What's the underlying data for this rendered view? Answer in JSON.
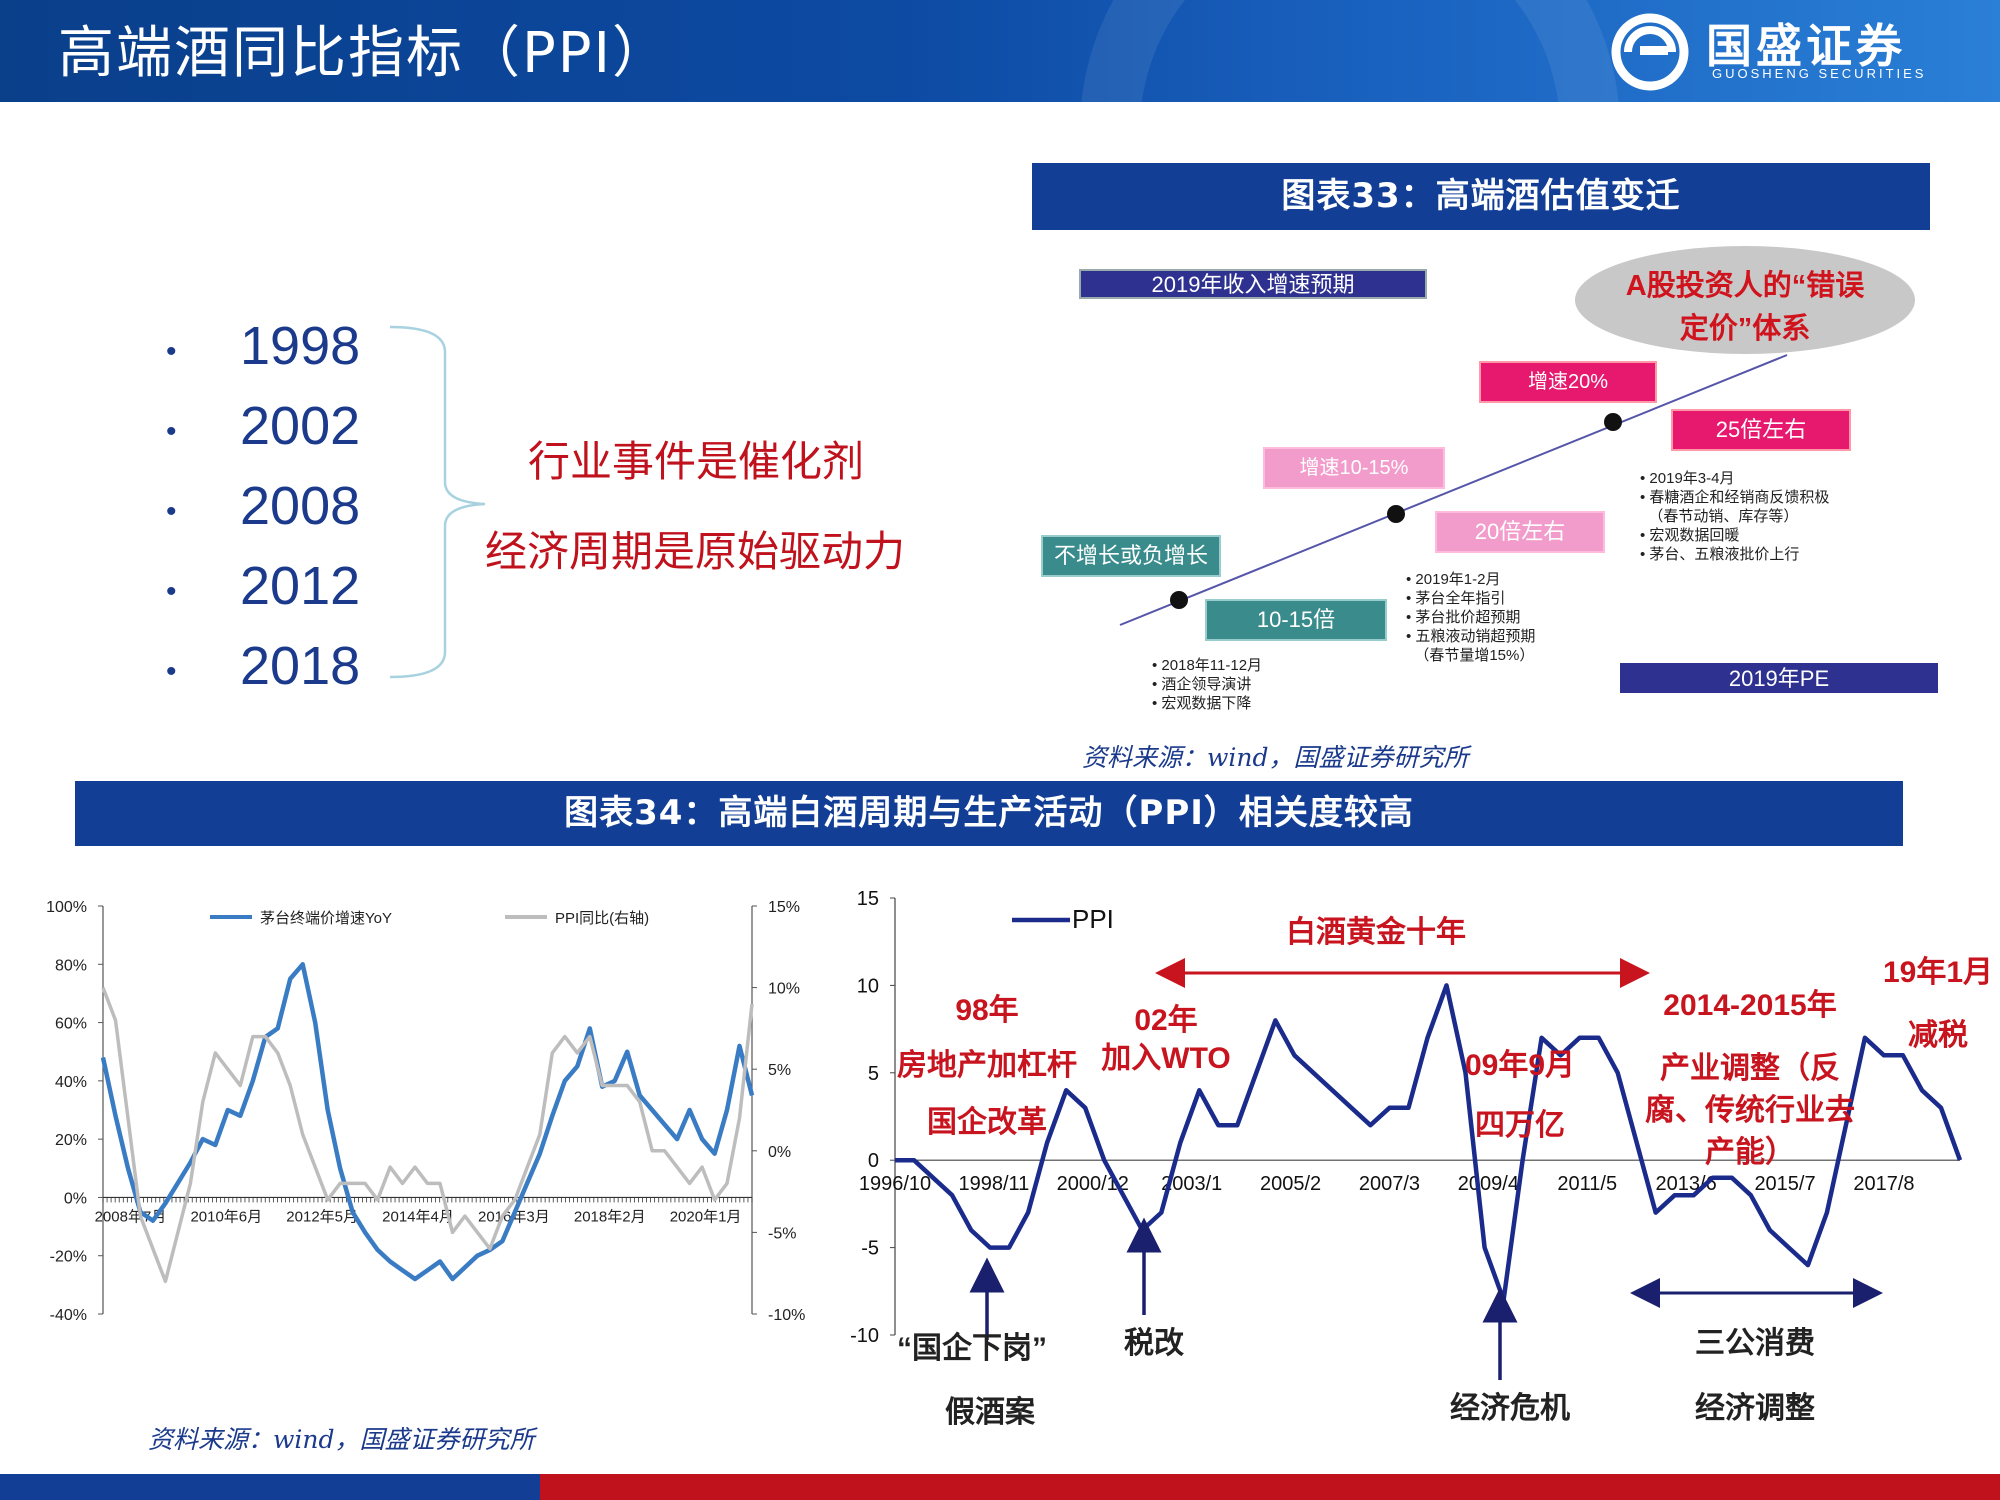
{
  "header": {
    "title": "高端酒同比指标（PPI）",
    "logo_text": "国盛证券",
    "logo_sub": "GUOSHENG SECURITIES"
  },
  "left_panel": {
    "years": [
      "1998",
      "2002",
      "2008",
      "2012",
      "2018"
    ],
    "line1": "行业事件是催化剂",
    "line2": "经济周期是原始驱动力"
  },
  "fig33": {
    "title": "图表33：高端酒估值变迁",
    "label_rev": "2019年收入增速预期",
    "label_pe": "2019年PE",
    "ellipse_text1": "A股投资人的“错误",
    "ellipse_text2": "定价”体系",
    "box_nogrowth": "不增长或负增长",
    "box_10_15x": "10-15倍",
    "box_growth_10_15": "增速10-15%",
    "box_20x": "20倍左右",
    "box_growth_20": "增速20%",
    "box_25x": "25倍左右",
    "notes_a": [
      "2018年11-12月",
      "酒企领导演讲",
      "宏观数据下降"
    ],
    "notes_b": [
      "2019年1-2月",
      "茅台全年指引",
      "茅台批价超预期",
      "五粮液动销超预期",
      "（春节量增15%）"
    ],
    "notes_c": [
      "2019年3-4月",
      "春糖酒企和经销商反馈积极",
      "（春节动销、库存等）",
      "宏观数据回暖",
      "茅台、五粮液批价上行"
    ],
    "source": "资料来源：wind，国盛证券研究所"
  },
  "fig34": {
    "title": "图表34：高端白酒周期与生产活动（PPI）相关度较高"
  },
  "source_bottom": "资料来源：wind，国盛证券研究所",
  "colors": {
    "navy": "#123e96",
    "red": "#c0121c",
    "blue_series": "#3a7cc4",
    "gray_series": "#bdbdbd",
    "ppi_series": "#1b2b8c"
  },
  "chart_data": [
    {
      "type": "line",
      "legend": [
        "茅台终端价增速YoY",
        "PPI同比(右轴)"
      ],
      "legend_position": "top",
      "x_ticks": [
        "2008年7月",
        "2010年6月",
        "2012年5月",
        "2014年4月",
        "2016年3月",
        "2018年2月",
        "2020年1月"
      ],
      "y_left_ticks": [
        "100%",
        "80%",
        "60%",
        "40%",
        "20%",
        "0%",
        "-20%",
        "-40%"
      ],
      "y_right_ticks": [
        "15%",
        "10%",
        "5%",
        "0%",
        "-5%",
        "-10%"
      ],
      "ylim_left": [
        -40,
        100
      ],
      "ylim_right": [
        -10,
        15
      ],
      "series": [
        {
          "name": "茅台终端价增速YoY",
          "axis": "left",
          "x": [
            2008.0,
            2008.25,
            2008.5,
            2008.75,
            2009.0,
            2009.25,
            2009.5,
            2009.75,
            2010.0,
            2010.25,
            2010.5,
            2010.75,
            2011.0,
            2011.25,
            2011.5,
            2011.75,
            2012.0,
            2012.25,
            2012.5,
            2012.75,
            2013.0,
            2013.25,
            2013.5,
            2013.75,
            2014.0,
            2014.25,
            2014.5,
            2014.75,
            2015.0,
            2015.25,
            2015.5,
            2015.75,
            2016.0,
            2016.25,
            2016.5,
            2016.75,
            2017.0,
            2017.25,
            2017.5,
            2017.75,
            2018.0,
            2018.25,
            2018.5,
            2018.75,
            2019.0,
            2019.25,
            2019.5,
            2019.75,
            2020.0,
            2020.25,
            2020.5,
            2020.75,
            2021.0
          ],
          "values": [
            48,
            28,
            10,
            -5,
            -8,
            -2,
            5,
            12,
            20,
            18,
            30,
            28,
            40,
            55,
            58,
            75,
            80,
            60,
            30,
            10,
            -5,
            -12,
            -18,
            -22,
            -25,
            -28,
            -25,
            -22,
            -28,
            -24,
            -20,
            -18,
            -15,
            -5,
            5,
            15,
            28,
            40,
            45,
            58,
            38,
            40,
            50,
            35,
            30,
            25,
            20,
            30,
            20,
            15,
            30,
            52,
            35
          ]
        },
        {
          "name": "PPI同比(右轴)",
          "axis": "right",
          "x": [
            2008.0,
            2008.25,
            2008.5,
            2008.75,
            2009.0,
            2009.25,
            2009.5,
            2009.75,
            2010.0,
            2010.25,
            2010.5,
            2010.75,
            2011.0,
            2011.25,
            2011.5,
            2011.75,
            2012.0,
            2012.25,
            2012.5,
            2012.75,
            2013.0,
            2013.25,
            2013.5,
            2013.75,
            2014.0,
            2014.25,
            2014.5,
            2014.75,
            2015.0,
            2015.25,
            2015.5,
            2015.75,
            2016.0,
            2016.25,
            2016.5,
            2016.75,
            2017.0,
            2017.25,
            2017.5,
            2017.75,
            2018.0,
            2018.25,
            2018.5,
            2018.75,
            2019.0,
            2019.25,
            2019.5,
            2019.75,
            2020.0,
            2020.25,
            2020.5,
            2020.75,
            2021.0
          ],
          "values": [
            10,
            8,
            2,
            -4,
            -6,
            -8,
            -5,
            -2,
            3,
            6,
            5,
            4,
            7,
            7,
            6,
            4,
            1,
            -1,
            -3,
            -2,
            -2,
            -2,
            -3,
            -1,
            -2,
            -1,
            -2,
            -2,
            -5,
            -4,
            -5,
            -6,
            -4,
            -3,
            -1,
            1,
            6,
            7,
            6,
            7,
            4,
            4,
            4,
            3,
            0,
            0,
            -1,
            -2,
            -1,
            -3,
            -2,
            2,
            9
          ]
        }
      ]
    },
    {
      "type": "line",
      "legend": [
        "PPI"
      ],
      "legend_position": "top-left",
      "x_ticks": [
        "1996/10",
        "1998/11",
        "2000/12",
        "2003/1",
        "2005/2",
        "2007/3",
        "2009/4",
        "2011/5",
        "2013/6",
        "2015/7",
        "2017/8"
      ],
      "y_ticks": [
        "15",
        "10",
        "5",
        "0",
        "-5",
        "-10"
      ],
      "ylim": [
        -10,
        15
      ],
      "series": [
        {
          "name": "PPI",
          "x": [
            1996.8,
            1997.2,
            1997.6,
            1998.0,
            1998.4,
            1998.8,
            1999.2,
            1999.6,
            2000.0,
            2000.4,
            2000.8,
            2001.2,
            2001.6,
            2002.0,
            2002.4,
            2002.8,
            2003.2,
            2003.6,
            2004.0,
            2004.4,
            2004.8,
            2005.2,
            2005.6,
            2006.0,
            2006.4,
            2006.8,
            2007.2,
            2007.6,
            2008.0,
            2008.4,
            2008.8,
            2009.2,
            2009.6,
            2010.0,
            2010.4,
            2010.8,
            2011.2,
            2011.6,
            2012.0,
            2012.4,
            2012.8,
            2013.2,
            2013.6,
            2014.0,
            2014.4,
            2014.8,
            2015.2,
            2015.6,
            2016.0,
            2016.4,
            2016.8,
            2017.2,
            2017.6,
            2018.0,
            2018.4,
            2018.8,
            2019.2
          ],
          "values": [
            0,
            0,
            -1,
            -2,
            -4,
            -5,
            -5,
            -3,
            1,
            4,
            3,
            0,
            -2,
            -4,
            -3,
            1,
            4,
            2,
            2,
            5,
            8,
            6,
            5,
            4,
            3,
            2,
            3,
            3,
            7,
            10,
            5,
            -5,
            -8,
            0,
            7,
            6,
            7,
            7,
            5,
            1,
            -3,
            -2,
            -2,
            -1,
            -1,
            -2,
            -4,
            -5,
            -6,
            -3,
            2,
            7,
            6,
            6,
            4,
            3,
            0
          ]
        }
      ],
      "annotations": [
        "98年",
        "房地产加杠杆",
        "国企改革",
        "02年",
        "加入WTO",
        "白酒黄金十年",
        "09年9月",
        "四万亿",
        "2014-2015年",
        "产业调整（反",
        "腐、传统行业去",
        "产能）",
        "19年1月",
        "减税",
        "“国企下岗”",
        "假酒案",
        "税改",
        "经济危机",
        "三公消费",
        "经济调整"
      ]
    }
  ]
}
